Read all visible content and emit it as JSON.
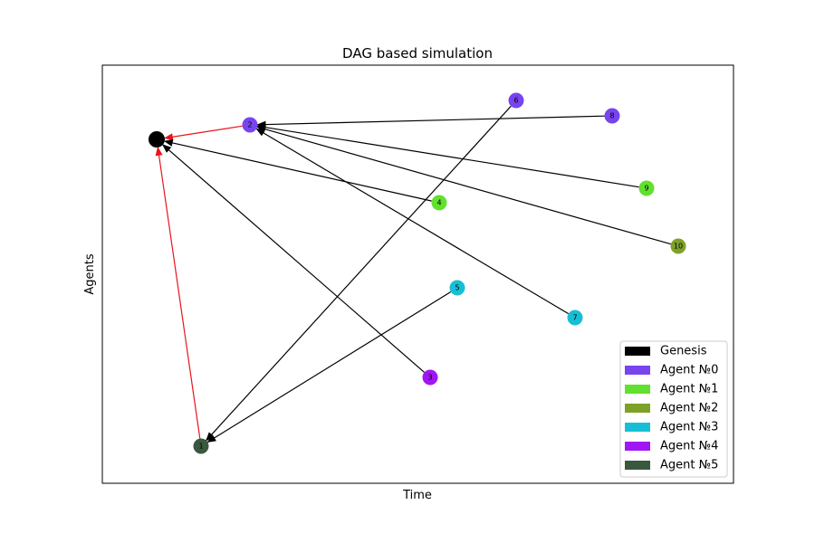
{
  "title": "DAG based simulation",
  "xlabel": "Time",
  "ylabel": "Agents",
  "colors": {
    "edge_default": "#000000",
    "edge_highlight": "#e8141a"
  },
  "legend": [
    {
      "label": "Genesis",
      "color": "#000000"
    },
    {
      "label": "Agent №0",
      "color": "#7744f0"
    },
    {
      "label": "Agent №1",
      "color": "#62e02e"
    },
    {
      "label": "Agent №2",
      "color": "#7ea12a"
    },
    {
      "label": "Agent №3",
      "color": "#17bfd4"
    },
    {
      "label": "Agent №4",
      "color": "#a116f4"
    },
    {
      "label": "Agent №5",
      "color": "#3a583e"
    }
  ],
  "nodes": [
    {
      "id": "genesis",
      "label": "",
      "group": "Genesis"
    },
    {
      "id": "1",
      "label": "1",
      "group": "Agent №5"
    },
    {
      "id": "2",
      "label": "2",
      "group": "Agent №0"
    },
    {
      "id": "3",
      "label": "3",
      "group": "Agent №4"
    },
    {
      "id": "4",
      "label": "4",
      "group": "Agent №1"
    },
    {
      "id": "5",
      "label": "5",
      "group": "Agent №3"
    },
    {
      "id": "6",
      "label": "6",
      "group": "Agent №0"
    },
    {
      "id": "7",
      "label": "7",
      "group": "Agent №3"
    },
    {
      "id": "8",
      "label": "8",
      "group": "Agent №0"
    },
    {
      "id": "9",
      "label": "9",
      "group": "Agent №1"
    },
    {
      "id": "10",
      "label": "10",
      "group": "Agent №2"
    }
  ],
  "edges": [
    {
      "from": "2",
      "to": "genesis",
      "highlight": true
    },
    {
      "from": "1",
      "to": "genesis",
      "highlight": true
    },
    {
      "from": "4",
      "to": "genesis",
      "highlight": false
    },
    {
      "from": "3",
      "to": "genesis",
      "highlight": false
    },
    {
      "from": "8",
      "to": "2",
      "highlight": false
    },
    {
      "from": "9",
      "to": "2",
      "highlight": false
    },
    {
      "from": "10",
      "to": "2",
      "highlight": false
    },
    {
      "from": "7",
      "to": "2",
      "highlight": false
    },
    {
      "from": "6",
      "to": "1",
      "highlight": false
    },
    {
      "from": "5",
      "to": "1",
      "highlight": false
    }
  ]
}
